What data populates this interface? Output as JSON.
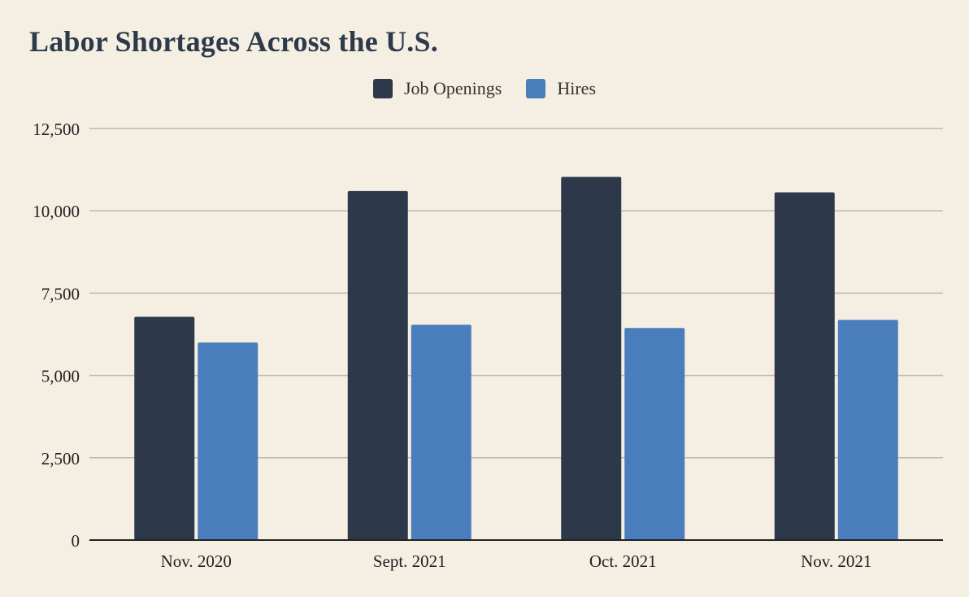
{
  "colors": {
    "background": "#f5efe3",
    "title": "#2d3a4b",
    "job_openings": "#2d394b",
    "hires": "#4a7dbb",
    "grid": "#bdb9ad",
    "axis": "#222222"
  },
  "legend": {
    "items": [
      {
        "label": "Job Openings",
        "color_key": "job_openings"
      },
      {
        "label": "Hires",
        "color_key": "hires"
      }
    ]
  },
  "chart_data": {
    "type": "bar",
    "title": "Labor Shortages Across the U.S.",
    "xlabel": "",
    "ylabel": "",
    "categories": [
      "Nov. 2020",
      "Sept. 2021",
      "Oct. 2021",
      "Nov. 2021"
    ],
    "series": [
      {
        "name": "Job Openings",
        "values": [
          6780,
          10600,
          11030,
          10560
        ]
      },
      {
        "name": "Hires",
        "values": [
          6000,
          6540,
          6440,
          6690
        ]
      }
    ],
    "ylim": [
      0,
      12500
    ],
    "yticks": [
      0,
      2500,
      5000,
      7500,
      10000,
      12500
    ],
    "ytick_labels": [
      "0",
      "2,500",
      "5,000",
      "7,500",
      "10,000",
      "12,500"
    ],
    "grid": true,
    "legend_position": "top-center"
  }
}
